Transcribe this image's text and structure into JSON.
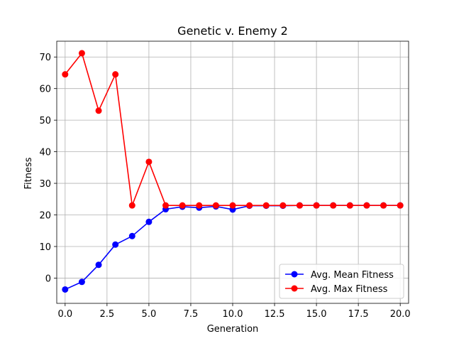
{
  "chart_data": {
    "type": "line",
    "title": "Genetic v. Enemy 2",
    "xlabel": "Generation",
    "ylabel": "Fitness",
    "xlim": [
      -0.5,
      20.5
    ],
    "ylim": [
      -8,
      75
    ],
    "xticks": [
      0,
      2.5,
      5,
      7.5,
      10,
      12.5,
      15,
      17.5,
      20
    ],
    "xtick_labels": [
      "0.0",
      "2.5",
      "5.0",
      "7.5",
      "10.0",
      "12.5",
      "15.0",
      "17.5",
      "20.0"
    ],
    "yticks": [
      0,
      10,
      20,
      30,
      40,
      50,
      60,
      70
    ],
    "ytick_labels": [
      "0",
      "10",
      "20",
      "30",
      "40",
      "50",
      "60",
      "70"
    ],
    "grid": true,
    "legend_position": "lower-right",
    "x": [
      0,
      1,
      2,
      3,
      4,
      5,
      6,
      7,
      8,
      9,
      10,
      11,
      12,
      13,
      14,
      15,
      16,
      17,
      18,
      19,
      20
    ],
    "series": [
      {
        "name": "Avg. Mean Fitness",
        "color": "#0000ff",
        "values": [
          -3.6,
          -1.2,
          4.2,
          10.6,
          13.3,
          17.8,
          21.8,
          22.6,
          22.3,
          22.7,
          21.7,
          22.9,
          22.9,
          22.9,
          23.0,
          23.0,
          23.0,
          23.0,
          23.0,
          23.0,
          23.0
        ]
      },
      {
        "name": "Avg. Max Fitness",
        "color": "#ff0000",
        "values": [
          64.5,
          71.2,
          53.0,
          64.5,
          23.0,
          36.8,
          23.0,
          23.0,
          23.0,
          23.0,
          23.0,
          23.0,
          23.0,
          23.0,
          23.0,
          23.0,
          23.0,
          23.0,
          23.0,
          23.0,
          23.0
        ]
      }
    ]
  }
}
